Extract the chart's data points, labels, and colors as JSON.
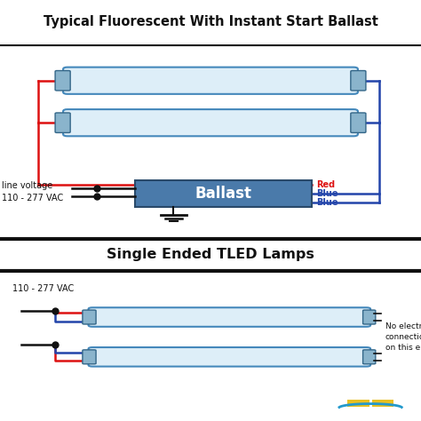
{
  "title_top": "Typical Fluorescent With Instant Start Ballast",
  "title_bottom": "Single Ended TLED Lamps",
  "bg_color": "#d4e8f4",
  "white_bg": "#ffffff",
  "lamp_fill": "#ddeef8",
  "lamp_edge": "#4488bb",
  "lamp_cap_fill": "#8ab4cc",
  "lamp_cap_edge": "#336688",
  "ballast_fill": "#4a7aaa",
  "ballast_edge": "#2a4a6a",
  "ballast_text": "Ballast",
  "ballast_text_color": "#ffffff",
  "wire_red": "#dd1111",
  "wire_blue": "#2244aa",
  "wire_black": "#111111",
  "label_line_voltage": "line voltage\n110 - 277 VAC",
  "label_red": "Red",
  "label_blue1": "Blue",
  "label_blue2": "Blue",
  "label_voltage_bottom": "110 - 277 VAC",
  "label_no_connections": "No electrical\nconnections\non this end",
  "font_size_title": 10.5,
  "font_size_label": 7,
  "font_size_ballast": 12,
  "separator_color": "#111111",
  "logo_color1": "#e8c020",
  "logo_color2": "#2299cc",
  "title_color": "#111111"
}
